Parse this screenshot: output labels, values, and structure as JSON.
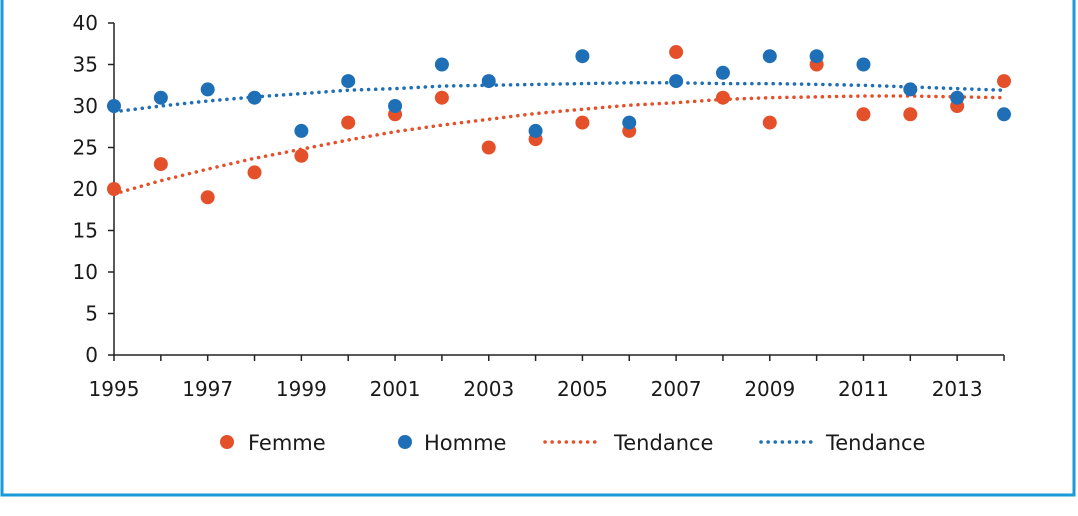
{
  "colors": {
    "frame": "#1a9ad6",
    "femme": "#e4502a",
    "homme": "#1f6fb6",
    "axis": "#222222"
  },
  "chart_data": {
    "type": "scatter",
    "title": "",
    "xlabel": "",
    "ylabel": "",
    "xlim": [
      1995,
      2014
    ],
    "ylim": [
      0,
      40
    ],
    "x_ticks": [
      "1995",
      "1997",
      "1999",
      "2001",
      "2003",
      "2005",
      "2007",
      "2009",
      "2011",
      "2013"
    ],
    "y_ticks": [
      "0",
      "5",
      "10",
      "15",
      "20",
      "25",
      "30",
      "35",
      "40"
    ],
    "grid": false,
    "legend_position": "bottom",
    "x": [
      1995,
      1996,
      1997,
      1998,
      1999,
      2000,
      2001,
      2002,
      2003,
      2004,
      2005,
      2006,
      2007,
      2008,
      2009,
      2010,
      2011,
      2012,
      2013,
      2014
    ],
    "series": [
      {
        "name": "Femme",
        "kind": "points",
        "color": "#e4502a",
        "values": [
          20,
          23,
          19,
          22,
          24,
          28,
          29,
          31,
          25,
          26,
          28,
          27,
          36.5,
          31,
          28,
          35,
          29,
          29,
          30,
          33
        ]
      },
      {
        "name": "Homme",
        "kind": "points",
        "color": "#1f6fb6",
        "values": [
          30,
          31,
          32,
          31,
          27,
          33,
          30,
          35,
          33,
          27,
          36,
          28,
          33,
          34,
          36,
          36,
          35,
          32,
          31,
          29
        ]
      },
      {
        "name": "Tendance",
        "kind": "trend",
        "color": "#e4502a",
        "values": [
          19.4,
          21.0,
          22.4,
          23.7,
          24.8,
          25.9,
          26.9,
          27.7,
          28.4,
          29.1,
          29.6,
          30.1,
          30.4,
          30.8,
          31.0,
          31.1,
          31.2,
          31.2,
          31.1,
          31.0
        ]
      },
      {
        "name": "Tendance",
        "kind": "trend",
        "color": "#1f6fb6",
        "values": [
          29.3,
          30.0,
          30.6,
          31.1,
          31.5,
          31.9,
          32.1,
          32.4,
          32.5,
          32.6,
          32.7,
          32.8,
          32.8,
          32.7,
          32.7,
          32.6,
          32.5,
          32.3,
          32.1,
          31.9
        ]
      }
    ]
  }
}
